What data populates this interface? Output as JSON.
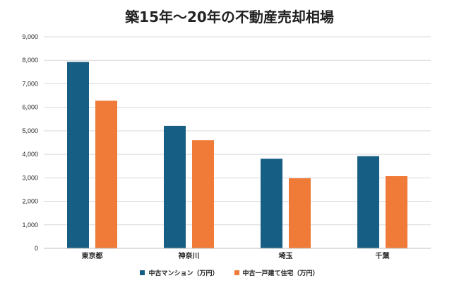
{
  "chart_data": {
    "type": "bar",
    "title": "築15年～20年の不動産売却相場",
    "xlabel": "",
    "ylabel": "",
    "ylim": [
      0,
      9000
    ],
    "yticks": [
      0,
      1000,
      2000,
      3000,
      4000,
      5000,
      6000,
      7000,
      8000,
      9000
    ],
    "ytick_labels": [
      "0",
      "1,000",
      "2,000",
      "3,000",
      "4,000",
      "5,000",
      "6,000",
      "7,000",
      "8,000",
      "9,000"
    ],
    "grid": true,
    "legend_position": "bottom-center",
    "categories": [
      "東京都",
      "神奈川",
      "埼玉",
      "千葉"
    ],
    "series": [
      {
        "name": "中古マンション（万円）",
        "color": "#175E84",
        "values": [
          7930,
          5210,
          3810,
          3920
        ]
      },
      {
        "name": "中古一戸建て住宅（万円）",
        "color": "#F07A37",
        "values": [
          6280,
          4600,
          2980,
          3070
        ]
      }
    ]
  }
}
